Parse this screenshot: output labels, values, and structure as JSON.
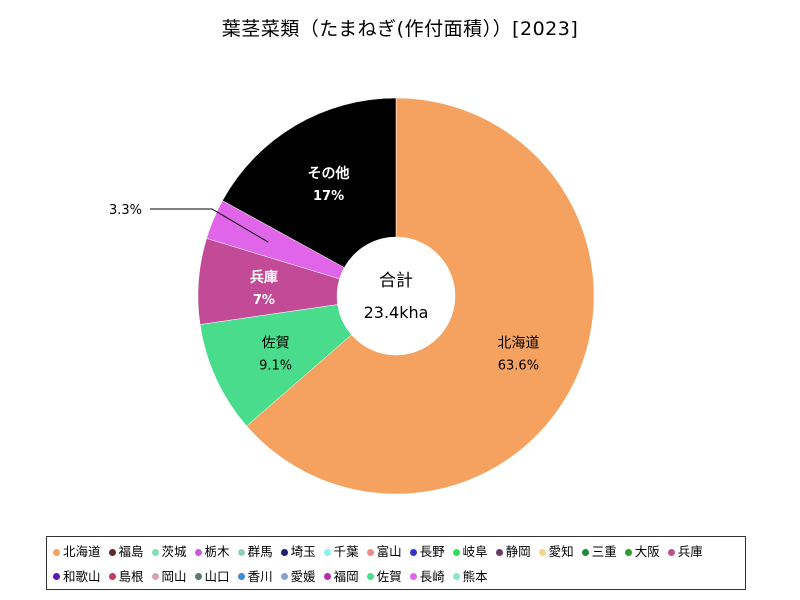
{
  "chart_data": {
    "type": "pie",
    "style": "donut",
    "title": "葉茎菜類（たまねぎ(作付面積））[2023]",
    "center_label": {
      "title": "合計",
      "value": "23.4kha"
    },
    "slices": [
      {
        "name": "北海道",
        "percent": 63.6,
        "label": "北海道",
        "value_label": "63.6%",
        "color": "#f5a15f",
        "label_style": "inside-dark"
      },
      {
        "name": "佐賀",
        "percent": 9.1,
        "label": "佐賀",
        "value_label": "9.1%",
        "color": "#48dc8c",
        "label_style": "inside-dark"
      },
      {
        "name": "兵庫",
        "percent": 7.0,
        "label": "兵庫",
        "value_label": "7%",
        "color": "#c24a97",
        "label_style": "inside-light"
      },
      {
        "name": "長崎",
        "percent": 3.3,
        "label": "",
        "value_label": "3.3%",
        "color": "#e065e8",
        "label_style": "callout"
      },
      {
        "name": "その他",
        "percent": 17.0,
        "label": "その他",
        "value_label": "17%",
        "color": "#000000",
        "label_style": "inside-light"
      }
    ],
    "legend": {
      "placement": "bottom",
      "items": [
        {
          "name": "北海道",
          "color": "#f5a15f"
        },
        {
          "name": "福島",
          "color": "#5a2a2a"
        },
        {
          "name": "茨城",
          "color": "#7ee0b0"
        },
        {
          "name": "栃木",
          "color": "#c75ad6"
        },
        {
          "name": "群馬",
          "color": "#8ecfc0"
        },
        {
          "name": "埼玉",
          "color": "#1f1f6e"
        },
        {
          "name": "千葉",
          "color": "#8ef0f0"
        },
        {
          "name": "富山",
          "color": "#f08c8c"
        },
        {
          "name": "長野",
          "color": "#3434c8"
        },
        {
          "name": "岐阜",
          "color": "#2ee05a"
        },
        {
          "name": "静岡",
          "color": "#6a3a6a"
        },
        {
          "name": "愛知",
          "color": "#f5d58a"
        },
        {
          "name": "三重",
          "color": "#1e8a3a"
        },
        {
          "name": "大阪",
          "color": "#2e9a2e"
        },
        {
          "name": "兵庫",
          "color": "#c24a97"
        },
        {
          "name": "和歌山",
          "color": "#5a1ab4"
        },
        {
          "name": "島根",
          "color": "#c83a5a"
        },
        {
          "name": "岡山",
          "color": "#d8a0b4"
        },
        {
          "name": "山口",
          "color": "#5a7a6a"
        },
        {
          "name": "香川",
          "color": "#3a8ad8"
        },
        {
          "name": "愛媛",
          "color": "#8aa0d0"
        },
        {
          "name": "福岡",
          "color": "#b42ab4"
        },
        {
          "name": "佐賀",
          "color": "#48dc8c"
        },
        {
          "name": "長崎",
          "color": "#e065e8"
        },
        {
          "name": "熊本",
          "color": "#8ae8c0"
        }
      ]
    }
  }
}
